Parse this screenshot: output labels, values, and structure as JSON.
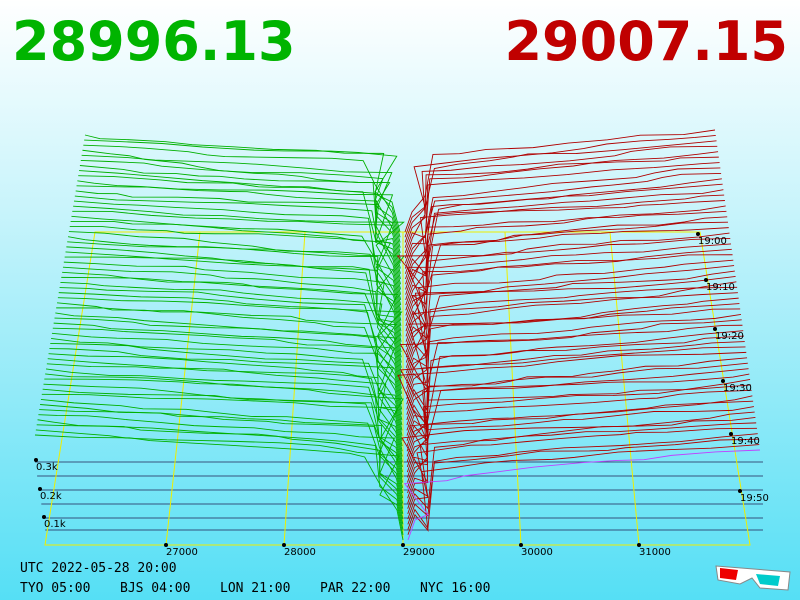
{
  "header": {
    "bid": "28996.13",
    "ask": "29007.15"
  },
  "price_axis": {
    "ticks": [
      "27000",
      "28000",
      "29000",
      "30000",
      "31000"
    ]
  },
  "depth_axis": {
    "ticks": [
      "0.3k",
      "0.2k",
      "0.1k"
    ]
  },
  "time_axis": {
    "ticks": [
      "19:00",
      "19:10",
      "19:20",
      "19:30",
      "19:40",
      "19:50"
    ]
  },
  "footer": {
    "utc": "UTC 2022-05-28 20:00",
    "zones": [
      "TYO 05:00",
      "BJS 04:00",
      "LON 21:00",
      "PAR 22:00",
      "NYC 16:00"
    ]
  }
}
